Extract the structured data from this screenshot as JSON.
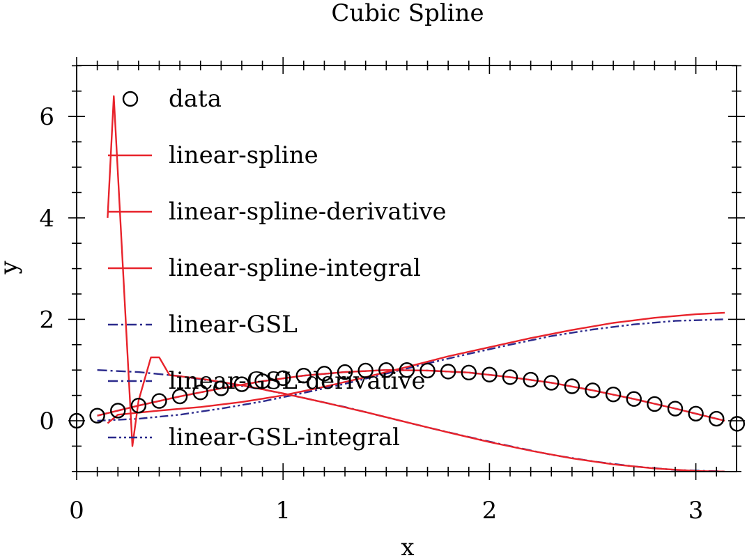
{
  "chart_data": {
    "type": "line",
    "title": "Cubic Spline",
    "xlabel": "x",
    "ylabel": "y",
    "xlim": [
      0,
      3.2
    ],
    "ylim": [
      -1,
      7
    ],
    "x_ticks": [
      "0",
      "1",
      "2",
      "3"
    ],
    "y_ticks": [
      "0",
      "2",
      "4",
      "6"
    ],
    "legend_position": "top-left",
    "grid": false,
    "data_points": {
      "name": "data",
      "marker": "open-circle",
      "color": "#000000",
      "x": [
        0,
        0.1,
        0.2,
        0.3,
        0.4,
        0.5,
        0.6,
        0.7,
        0.8,
        0.9,
        1.0,
        1.1,
        1.2,
        1.3,
        1.4,
        1.5,
        1.6,
        1.7,
        1.8,
        1.9,
        2.0,
        2.1,
        2.2,
        2.3,
        2.4,
        2.5,
        2.6,
        2.7,
        2.8,
        2.9,
        3.0,
        3.1,
        3.2
      ],
      "y": [
        0,
        0.1,
        0.2,
        0.3,
        0.39,
        0.48,
        0.56,
        0.64,
        0.72,
        0.78,
        0.84,
        0.89,
        0.93,
        0.96,
        0.99,
        1.0,
        1.0,
        0.99,
        0.97,
        0.95,
        0.91,
        0.86,
        0.81,
        0.75,
        0.68,
        0.6,
        0.52,
        0.43,
        0.33,
        0.24,
        0.14,
        0.04,
        -0.06
      ]
    },
    "series": [
      {
        "name": "linear-spline",
        "color": "#e8232b",
        "dash": "solid",
        "x": [
          0.1,
          0.2,
          0.3,
          0.5,
          0.7,
          0.9,
          1.1,
          1.3,
          1.5,
          1.7,
          1.9,
          2.1,
          2.3,
          2.5,
          2.7,
          2.9,
          3.1,
          3.14
        ],
        "y": [
          0.1,
          0.2,
          0.3,
          0.48,
          0.64,
          0.78,
          0.89,
          0.96,
          1.0,
          0.99,
          0.95,
          0.86,
          0.75,
          0.6,
          0.43,
          0.24,
          0.04,
          0.0
        ]
      },
      {
        "name": "linear-spline-derivative",
        "color": "#e8232b",
        "dash": "solid",
        "x": [
          0.15,
          0.18,
          0.27,
          0.3,
          0.36,
          0.4,
          0.45,
          0.6,
          0.8,
          1.0,
          1.2,
          1.4,
          1.6,
          1.8,
          2.0,
          2.2,
          2.4,
          2.6,
          2.8,
          3.0,
          3.14
        ],
        "y": [
          4.0,
          6.4,
          -0.5,
          0.4,
          1.25,
          1.25,
          0.9,
          0.83,
          0.7,
          0.54,
          0.36,
          0.17,
          -0.03,
          -0.23,
          -0.42,
          -0.59,
          -0.74,
          -0.86,
          -0.94,
          -0.99,
          -1.0
        ]
      },
      {
        "name": "linear-spline-integral",
        "color": "#e8232b",
        "dash": "solid",
        "x": [
          0.15,
          0.2,
          0.4,
          0.6,
          0.8,
          1.0,
          1.2,
          1.4,
          1.6,
          1.8,
          2.0,
          2.2,
          2.4,
          2.6,
          2.8,
          3.0,
          3.14
        ],
        "y": [
          -0.05,
          0.12,
          0.2,
          0.27,
          0.37,
          0.5,
          0.67,
          0.86,
          1.06,
          1.27,
          1.45,
          1.63,
          1.79,
          1.93,
          2.03,
          2.1,
          2.13
        ]
      },
      {
        "name": "linear-GSL",
        "color": "#2b2a8c",
        "dash": "dash-dot",
        "x": [
          0.1,
          0.2,
          0.3,
          0.5,
          0.7,
          0.9,
          1.1,
          1.3,
          1.5,
          1.7,
          1.9,
          2.1,
          2.3,
          2.5,
          2.7,
          2.9,
          3.1,
          3.14
        ],
        "y": [
          0.1,
          0.2,
          0.3,
          0.48,
          0.64,
          0.78,
          0.89,
          0.96,
          1.0,
          0.99,
          0.95,
          0.86,
          0.75,
          0.6,
          0.43,
          0.24,
          0.04,
          0.0
        ]
      },
      {
        "name": "linear-GSL-derivative",
        "color": "#2b2a8c",
        "dash": "dash-dot",
        "x": [
          0.1,
          0.3,
          0.5,
          0.7,
          0.9,
          1.1,
          1.3,
          1.5,
          1.7,
          1.9,
          2.1,
          2.3,
          2.5,
          2.7,
          2.9,
          3.14
        ],
        "y": [
          1.0,
          0.96,
          0.88,
          0.76,
          0.62,
          0.45,
          0.27,
          0.07,
          -0.13,
          -0.32,
          -0.5,
          -0.67,
          -0.8,
          -0.9,
          -0.97,
          -1.0
        ]
      },
      {
        "name": "linear-GSL-integral",
        "color": "#2b2a8c",
        "dash": "dash-dot-dot",
        "x": [
          0.1,
          0.3,
          0.5,
          0.7,
          0.9,
          1.1,
          1.3,
          1.5,
          1.7,
          1.9,
          2.1,
          2.3,
          2.5,
          2.7,
          2.9,
          3.14
        ],
        "y": [
          0.0,
          0.04,
          0.12,
          0.24,
          0.38,
          0.55,
          0.73,
          0.93,
          1.13,
          1.32,
          1.5,
          1.67,
          1.8,
          1.9,
          1.97,
          2.0
        ]
      }
    ]
  }
}
